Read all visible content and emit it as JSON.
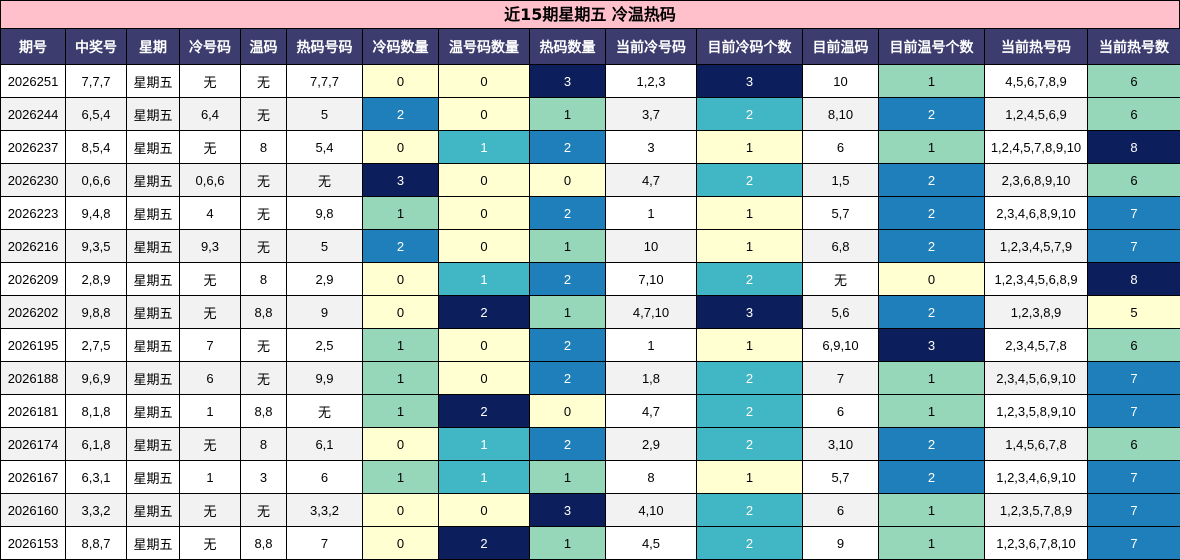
{
  "title": "近15期星期五 冷温热码",
  "headers": [
    "期号",
    "中奖号",
    "星期",
    "冷号码",
    "温码",
    "热码号码",
    "冷码数量",
    "温号码数量",
    "热码数量",
    "当前冷号码",
    "目前冷码个数",
    "目前温码",
    "目前温号个数",
    "当前热号码",
    "当前热号数"
  ],
  "rows": [
    [
      "2026251",
      "7,7,7",
      "星期五",
      "无",
      "无",
      "7,7,7",
      "0",
      "0",
      "3",
      "1,2,3",
      "3",
      "10",
      "1",
      "4,5,6,7,8,9",
      "6"
    ],
    [
      "2026244",
      "6,5,4",
      "星期五",
      "6,4",
      "无",
      "5",
      "2",
      "0",
      "1",
      "3,7",
      "2",
      "8,10",
      "2",
      "1,2,4,5,6,9",
      "6"
    ],
    [
      "2026237",
      "8,5,4",
      "星期五",
      "无",
      "8",
      "5,4",
      "0",
      "1",
      "2",
      "3",
      "1",
      "6",
      "1",
      "1,2,4,5,7,8,9,10",
      "8"
    ],
    [
      "2026230",
      "0,6,6",
      "星期五",
      "0,6,6",
      "无",
      "无",
      "3",
      "0",
      "0",
      "4,7",
      "2",
      "1,5",
      "2",
      "2,3,6,8,9,10",
      "6"
    ],
    [
      "2026223",
      "9,4,8",
      "星期五",
      "4",
      "无",
      "9,8",
      "1",
      "0",
      "2",
      "1",
      "1",
      "5,7",
      "2",
      "2,3,4,6,8,9,10",
      "7"
    ],
    [
      "2026216",
      "9,3,5",
      "星期五",
      "9,3",
      "无",
      "5",
      "2",
      "0",
      "1",
      "10",
      "1",
      "6,8",
      "2",
      "1,2,3,4,5,7,9",
      "7"
    ],
    [
      "2026209",
      "2,8,9",
      "星期五",
      "无",
      "8",
      "2,9",
      "0",
      "1",
      "2",
      "7,10",
      "2",
      "无",
      "0",
      "1,2,3,4,5,6,8,9",
      "8"
    ],
    [
      "2026202",
      "9,8,8",
      "星期五",
      "无",
      "8,8",
      "9",
      "0",
      "2",
      "1",
      "4,7,10",
      "3",
      "5,6",
      "2",
      "1,2,3,8,9",
      "5"
    ],
    [
      "2026195",
      "2,7,5",
      "星期五",
      "7",
      "无",
      "2,5",
      "1",
      "0",
      "2",
      "1",
      "1",
      "6,9,10",
      "3",
      "2,3,4,5,7,8",
      "6"
    ],
    [
      "2026188",
      "9,6,9",
      "星期五",
      "6",
      "无",
      "9,9",
      "1",
      "0",
      "2",
      "1,8",
      "2",
      "7",
      "1",
      "2,3,4,5,6,9,10",
      "7"
    ],
    [
      "2026181",
      "8,1,8",
      "星期五",
      "1",
      "8,8",
      "无",
      "1",
      "2",
      "0",
      "4,7",
      "2",
      "6",
      "1",
      "1,2,3,5,8,9,10",
      "7"
    ],
    [
      "2026174",
      "6,1,8",
      "星期五",
      "无",
      "8",
      "6,1",
      "0",
      "1",
      "2",
      "2,9",
      "2",
      "3,10",
      "2",
      "1,4,5,6,7,8",
      "6"
    ],
    [
      "2026167",
      "6,3,1",
      "星期五",
      "1",
      "3",
      "6",
      "1",
      "1",
      "1",
      "8",
      "1",
      "5,7",
      "2",
      "1,2,3,4,6,9,10",
      "7"
    ],
    [
      "2026160",
      "3,3,2",
      "星期五",
      "无",
      "无",
      "3,3,2",
      "0",
      "0",
      "3",
      "4,10",
      "2",
      "6",
      "1",
      "1,2,3,5,7,8,9",
      "7"
    ],
    [
      "2026153",
      "8,8,7",
      "星期五",
      "无",
      "8,8",
      "7",
      "0",
      "2",
      "1",
      "4,5",
      "2",
      "9",
      "1",
      "1,2,3,6,7,8,10",
      "7"
    ]
  ],
  "colors": {
    "title_bg": "#ffc0cb",
    "header_bg": "#3c3c6e",
    "level0": "#ffffd2",
    "level1": "#96d7b9",
    "level2": "#1f7fba",
    "level_teal": "#41b6c4",
    "level3": "#0c1e5b"
  }
}
